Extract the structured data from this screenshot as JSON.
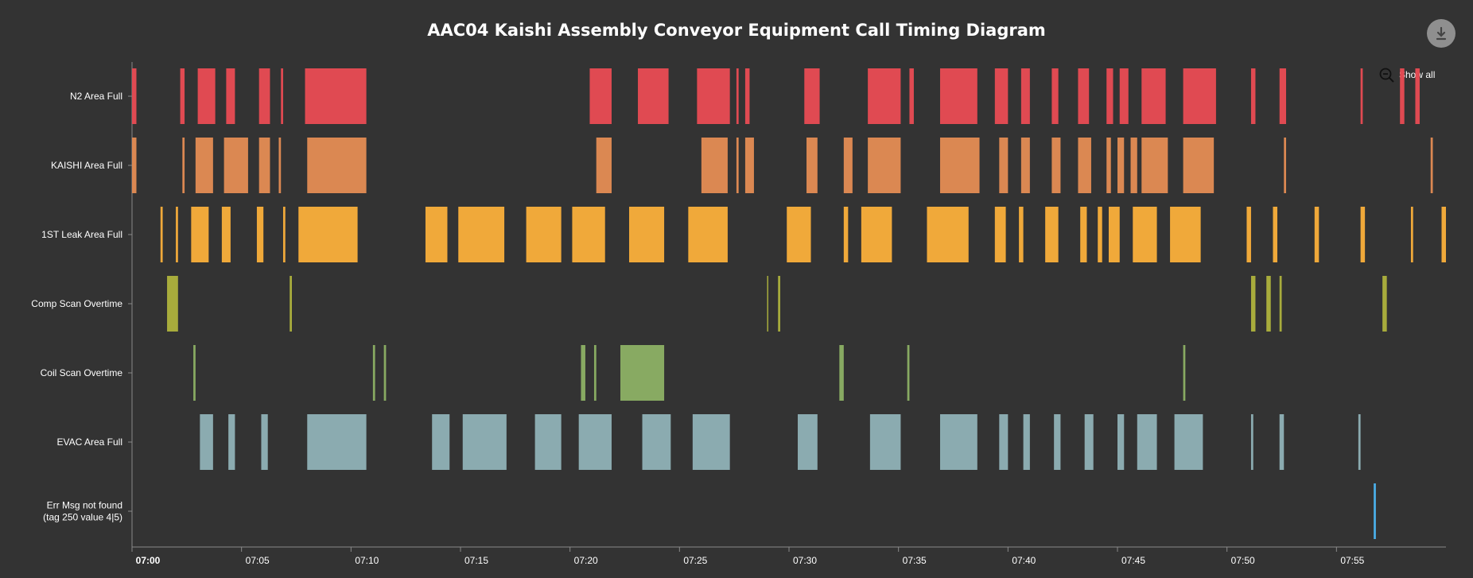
{
  "colors": {
    "background": "#333333",
    "axis": "#8a8a8a",
    "text": "#ffffff",
    "button": "#8f8f8f"
  },
  "toolbar": {
    "download_icon": "download-arrow-icon",
    "zoom_icon": "zoom-out-magnifier-icon",
    "show_all_label": "Show all"
  },
  "chart_data": {
    "type": "timeline",
    "title": "AAC04 Kaishi Assembly Conveyor Equipment Call Timing Diagram",
    "xlabel": "",
    "ylabel": "",
    "x_range_minutes": [
      0,
      60
    ],
    "x_ticks": [
      "07:00",
      "07:05",
      "07:10",
      "07:15",
      "07:20",
      "07:25",
      "07:30",
      "07:35",
      "07:40",
      "07:45",
      "07:50",
      "07:55"
    ],
    "grid": false,
    "legend": "none",
    "series": [
      {
        "name": "N2 Area Full",
        "color": "#e04a52",
        "intervals": [
          [
            0.0,
            0.2
          ],
          [
            2.2,
            2.4
          ],
          [
            3.0,
            3.8
          ],
          [
            4.3,
            4.7
          ],
          [
            5.8,
            6.3
          ],
          [
            6.8,
            6.9
          ],
          [
            7.9,
            10.7
          ],
          [
            20.9,
            21.9
          ],
          [
            23.1,
            24.5
          ],
          [
            25.8,
            27.3
          ],
          [
            27.6,
            27.7
          ],
          [
            28.0,
            28.2
          ],
          [
            30.7,
            31.4
          ],
          [
            33.6,
            35.1
          ],
          [
            35.5,
            35.7
          ],
          [
            36.9,
            38.6
          ],
          [
            39.4,
            40.0
          ],
          [
            40.6,
            41.0
          ],
          [
            42.0,
            42.3
          ],
          [
            43.2,
            43.7
          ],
          [
            44.5,
            44.8
          ],
          [
            45.1,
            45.5
          ],
          [
            46.1,
            47.2
          ],
          [
            48.0,
            49.5
          ],
          [
            51.1,
            51.3
          ],
          [
            52.4,
            52.7
          ],
          [
            56.1,
            56.2
          ],
          [
            57.9,
            58.1
          ],
          [
            58.6,
            58.8
          ]
        ]
      },
      {
        "name": "KAISHI Area Full",
        "color": "#db8852",
        "intervals": [
          [
            0.0,
            0.2
          ],
          [
            2.3,
            2.4
          ],
          [
            2.9,
            3.7
          ],
          [
            4.2,
            5.3
          ],
          [
            5.8,
            6.3
          ],
          [
            6.7,
            6.8
          ],
          [
            8.0,
            10.7
          ],
          [
            21.2,
            21.9
          ],
          [
            26.0,
            27.2
          ],
          [
            27.6,
            27.7
          ],
          [
            28.0,
            28.4
          ],
          [
            30.8,
            31.3
          ],
          [
            32.5,
            32.9
          ],
          [
            33.6,
            35.1
          ],
          [
            36.9,
            38.7
          ],
          [
            39.6,
            40.0
          ],
          [
            40.6,
            41.0
          ],
          [
            42.0,
            42.4
          ],
          [
            43.2,
            43.8
          ],
          [
            44.5,
            44.7
          ],
          [
            45.0,
            45.3
          ],
          [
            45.6,
            45.9
          ],
          [
            46.1,
            47.3
          ],
          [
            48.0,
            49.4
          ],
          [
            52.6,
            52.7
          ],
          [
            59.3,
            59.4
          ]
        ]
      },
      {
        "name": "1ST Leak Area Full",
        "color": "#f0a93a",
        "intervals": [
          [
            1.3,
            1.4
          ],
          [
            2.0,
            2.1
          ],
          [
            2.7,
            3.5
          ],
          [
            4.1,
            4.5
          ],
          [
            5.7,
            6.0
          ],
          [
            6.9,
            7.0
          ],
          [
            7.6,
            10.3
          ],
          [
            13.4,
            14.4
          ],
          [
            14.9,
            17.0
          ],
          [
            18.0,
            19.6
          ],
          [
            20.1,
            21.6
          ],
          [
            22.7,
            24.3
          ],
          [
            25.4,
            27.2
          ],
          [
            29.9,
            31.0
          ],
          [
            32.5,
            32.7
          ],
          [
            33.3,
            34.7
          ],
          [
            36.3,
            38.2
          ],
          [
            39.4,
            39.9
          ],
          [
            40.5,
            40.7
          ],
          [
            41.7,
            42.3
          ],
          [
            43.3,
            43.6
          ],
          [
            44.1,
            44.3
          ],
          [
            44.6,
            45.1
          ],
          [
            45.7,
            46.8
          ],
          [
            47.4,
            48.8
          ],
          [
            50.9,
            51.1
          ],
          [
            52.1,
            52.3
          ],
          [
            54.0,
            54.2
          ],
          [
            56.1,
            56.3
          ],
          [
            58.4,
            58.5
          ],
          [
            59.8,
            60.0
          ]
        ]
      },
      {
        "name": "Comp Scan Overtime",
        "color": "#a8ac3c",
        "intervals": [
          [
            1.6,
            2.1
          ],
          [
            7.2,
            7.3
          ],
          [
            29.0,
            29.05
          ],
          [
            29.5,
            29.6
          ],
          [
            51.1,
            51.3
          ],
          [
            51.8,
            52.0
          ],
          [
            52.4,
            52.5
          ],
          [
            57.1,
            57.3
          ]
        ]
      },
      {
        "name": "Coil Scan Overtime",
        "color": "#88aa62",
        "intervals": [
          [
            2.8,
            2.9
          ],
          [
            11.0,
            11.1
          ],
          [
            11.5,
            11.6
          ],
          [
            20.5,
            20.7
          ],
          [
            21.1,
            21.2
          ],
          [
            22.3,
            24.3
          ],
          [
            32.3,
            32.5
          ],
          [
            35.4,
            35.5
          ],
          [
            48.0,
            48.1
          ]
        ]
      },
      {
        "name": "EVAC Area Full",
        "color": "#8babb0",
        "intervals": [
          [
            3.1,
            3.7
          ],
          [
            4.4,
            4.7
          ],
          [
            5.9,
            6.2
          ],
          [
            8.0,
            10.7
          ],
          [
            13.7,
            14.5
          ],
          [
            15.1,
            17.1
          ],
          [
            18.4,
            19.6
          ],
          [
            20.4,
            21.9
          ],
          [
            23.3,
            24.6
          ],
          [
            25.6,
            27.3
          ],
          [
            30.4,
            31.3
          ],
          [
            33.7,
            35.1
          ],
          [
            36.9,
            38.6
          ],
          [
            39.6,
            40.0
          ],
          [
            40.7,
            41.0
          ],
          [
            42.1,
            42.4
          ],
          [
            43.5,
            43.9
          ],
          [
            45.0,
            45.3
          ],
          [
            45.9,
            46.8
          ],
          [
            47.6,
            48.9
          ],
          [
            51.1,
            51.2
          ],
          [
            52.4,
            52.6
          ],
          [
            56.0,
            56.1
          ]
        ]
      },
      {
        "name": "Err Msg not found\n(tag 250 value 4|5)",
        "color": "#4aaee8",
        "intervals": [
          [
            56.7,
            56.8
          ]
        ]
      }
    ]
  }
}
